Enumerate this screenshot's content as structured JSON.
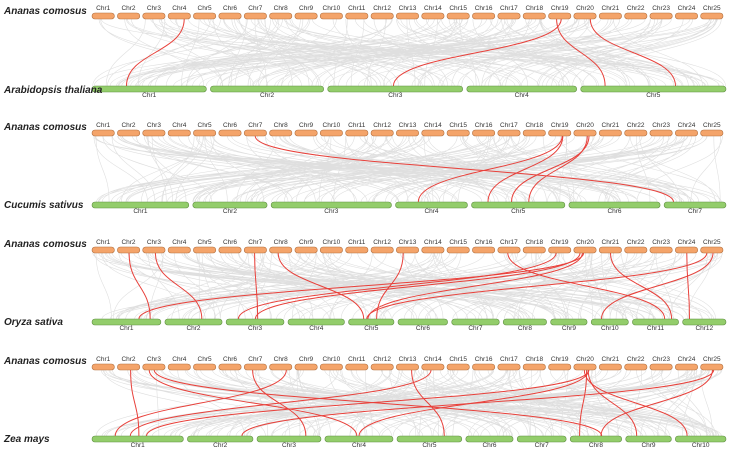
{
  "panels": [
    {
      "top_species": "Ananas comosus",
      "bottom_species": "Arabidopsis thaliana",
      "top_chromosomes": [
        "Chr1",
        "Chr2",
        "Chr3",
        "Chr4",
        "Chr5",
        "Chr6",
        "Chr7",
        "Chr8",
        "Chr9",
        "Chr10",
        "Chr11",
        "Chr12",
        "Chr13",
        "Chr14",
        "Chr15",
        "Chr16",
        "Chr17",
        "Chr18",
        "Chr19",
        "Chr20",
        "Chr21",
        "Chr22",
        "Chr23",
        "Chr24",
        "Chr25"
      ],
      "bottom_chromosomes": [
        "Chr1",
        "Chr2",
        "Chr3",
        "Chr4",
        "Chr5"
      ],
      "bottom_sizes": [
        1.0,
        0.99,
        1.18,
        0.96,
        1.27
      ],
      "highlighted_links": [
        [
          "Chr4",
          "Chr1"
        ],
        [
          "Chr19",
          "Chr3"
        ],
        [
          "Chr19",
          "Chr5"
        ],
        [
          "Chr20",
          "Chr5"
        ]
      ]
    },
    {
      "top_species": "Ananas comosus",
      "bottom_species": "Cucumis sativus",
      "top_chromosomes": [
        "Chr1",
        "Chr2",
        "Chr3",
        "Chr4",
        "Chr5",
        "Chr6",
        "Chr7",
        "Chr8",
        "Chr9",
        "Chr10",
        "Chr11",
        "Chr12",
        "Chr13",
        "Chr14",
        "Chr15",
        "Chr16",
        "Chr17",
        "Chr18",
        "Chr19",
        "Chr20",
        "Chr21",
        "Chr22",
        "Chr23",
        "Chr24",
        "Chr25"
      ],
      "bottom_chromosomes": [
        "Chr1",
        "Chr2",
        "Chr3",
        "Chr4",
        "Chr5",
        "Chr6",
        "Chr7"
      ],
      "bottom_sizes": [
        0.86,
        0.66,
        1.07,
        0.64,
        0.83,
        0.81,
        0.55
      ],
      "highlighted_links": [
        [
          "Chr7",
          "Chr7"
        ],
        [
          "Chr19",
          "Chr4"
        ],
        [
          "Chr19",
          "Chr5"
        ],
        [
          "Chr20",
          "Chr5"
        ],
        [
          "Chr20",
          "Chr5"
        ]
      ]
    },
    {
      "top_species": "Ananas comosus",
      "bottom_species": "Oryza sativa",
      "top_chromosomes": [
        "Chr1",
        "Chr2",
        "Chr3",
        "Chr4",
        "Chr5",
        "Chr6",
        "Chr7",
        "Chr8",
        "Chr9",
        "Chr10",
        "Chr11",
        "Chr12",
        "Chr13",
        "Chr14",
        "Chr15",
        "Chr16",
        "Chr17",
        "Chr18",
        "Chr19",
        "Chr20",
        "Chr21",
        "Chr22",
        "Chr23",
        "Chr24",
        "Chr25"
      ],
      "bottom_chromosomes": [
        "Chr1",
        "Chr2",
        "Chr3",
        "Chr4",
        "Chr5",
        "Chr6",
        "Chr7",
        "Chr8",
        "Chr9",
        "Chr10",
        "Chr11",
        "Chr12"
      ],
      "bottom_sizes": [
        1.0,
        0.83,
        0.84,
        0.82,
        0.66,
        0.72,
        0.69,
        0.63,
        0.53,
        0.54,
        0.67,
        0.63
      ],
      "highlighted_links": [
        [
          "Chr2",
          "Chr1"
        ],
        [
          "Chr3",
          "Chr2"
        ],
        [
          "Chr7",
          "Chr3"
        ],
        [
          "Chr8",
          "Chr5"
        ],
        [
          "Chr13",
          "Chr5"
        ],
        [
          "Chr17",
          "Chr11"
        ],
        [
          "Chr19",
          "Chr3"
        ],
        [
          "Chr20",
          "Chr1"
        ],
        [
          "Chr20",
          "Chr3"
        ],
        [
          "Chr20",
          "Chr5"
        ],
        [
          "Chr21",
          "Chr11"
        ],
        [
          "Chr24",
          "Chr12"
        ],
        [
          "Chr25",
          "Chr5"
        ],
        [
          "Chr25",
          "Chr10"
        ]
      ]
    },
    {
      "top_species": "Ananas comosus",
      "bottom_species": "Zea mays",
      "top_chromosomes": [
        "Chr1",
        "Chr2",
        "Chr3",
        "Chr4",
        "Chr5",
        "Chr6",
        "Chr7",
        "Chr8",
        "Chr9",
        "Chr10",
        "Chr11",
        "Chr12",
        "Chr13",
        "Chr14",
        "Chr15",
        "Chr16",
        "Chr17",
        "Chr18",
        "Chr19",
        "Chr20",
        "Chr21",
        "Chr22",
        "Chr23",
        "Chr24",
        "Chr25"
      ],
      "bottom_chromosomes": [
        "Chr1",
        "Chr2",
        "Chr3",
        "Chr4",
        "Chr5",
        "Chr6",
        "Chr7",
        "Chr8",
        "Chr9",
        "Chr10"
      ],
      "bottom_sizes": [
        1.1,
        0.79,
        0.77,
        0.82,
        0.78,
        0.57,
        0.59,
        0.62,
        0.55,
        0.61
      ],
      "highlighted_links": [
        [
          "Chr2",
          "Chr1"
        ],
        [
          "Chr3",
          "Chr4"
        ],
        [
          "Chr3",
          "Chr8"
        ],
        [
          "Chr7",
          "Chr3"
        ],
        [
          "Chr8",
          "Chr1"
        ],
        [
          "Chr13",
          "Chr5"
        ],
        [
          "Chr14",
          "Chr1"
        ],
        [
          "Chr20",
          "Chr1"
        ],
        [
          "Chr20",
          "Chr4"
        ],
        [
          "Chr20",
          "Chr8"
        ],
        [
          "Chr20",
          "Chr9"
        ],
        [
          "Chr20",
          "Chr10"
        ],
        [
          "Chr25",
          "Chr2"
        ],
        [
          "Chr25",
          "Chr8"
        ]
      ]
    }
  ],
  "colors": {
    "top_chromosome": "#f4a46a",
    "top_chromosome_stroke": "#b2703f",
    "bottom_chromosome": "#93cd6b",
    "bottom_chromosome_stroke": "#5f8f41",
    "background_links": "#d9d9d9",
    "highlighted_links": "#e8403a"
  }
}
